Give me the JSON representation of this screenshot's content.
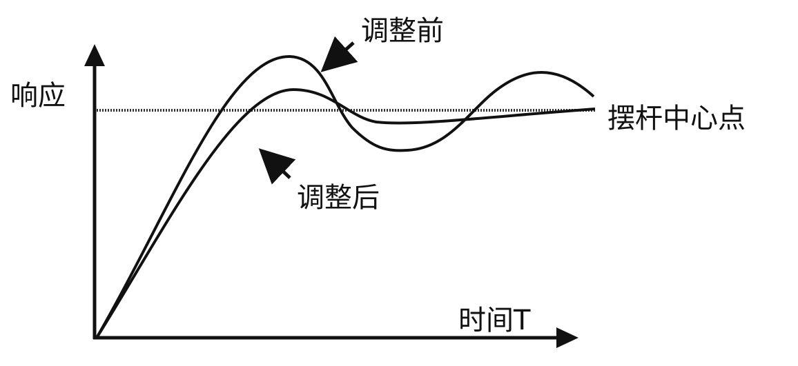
{
  "labels": {
    "y_axis": "响应",
    "x_axis": "时间T",
    "center_line": "摆杆中心点",
    "before": "调整前",
    "after": "调整后"
  },
  "colors": {
    "line": "#111111",
    "background": "#ffffff"
  }
}
